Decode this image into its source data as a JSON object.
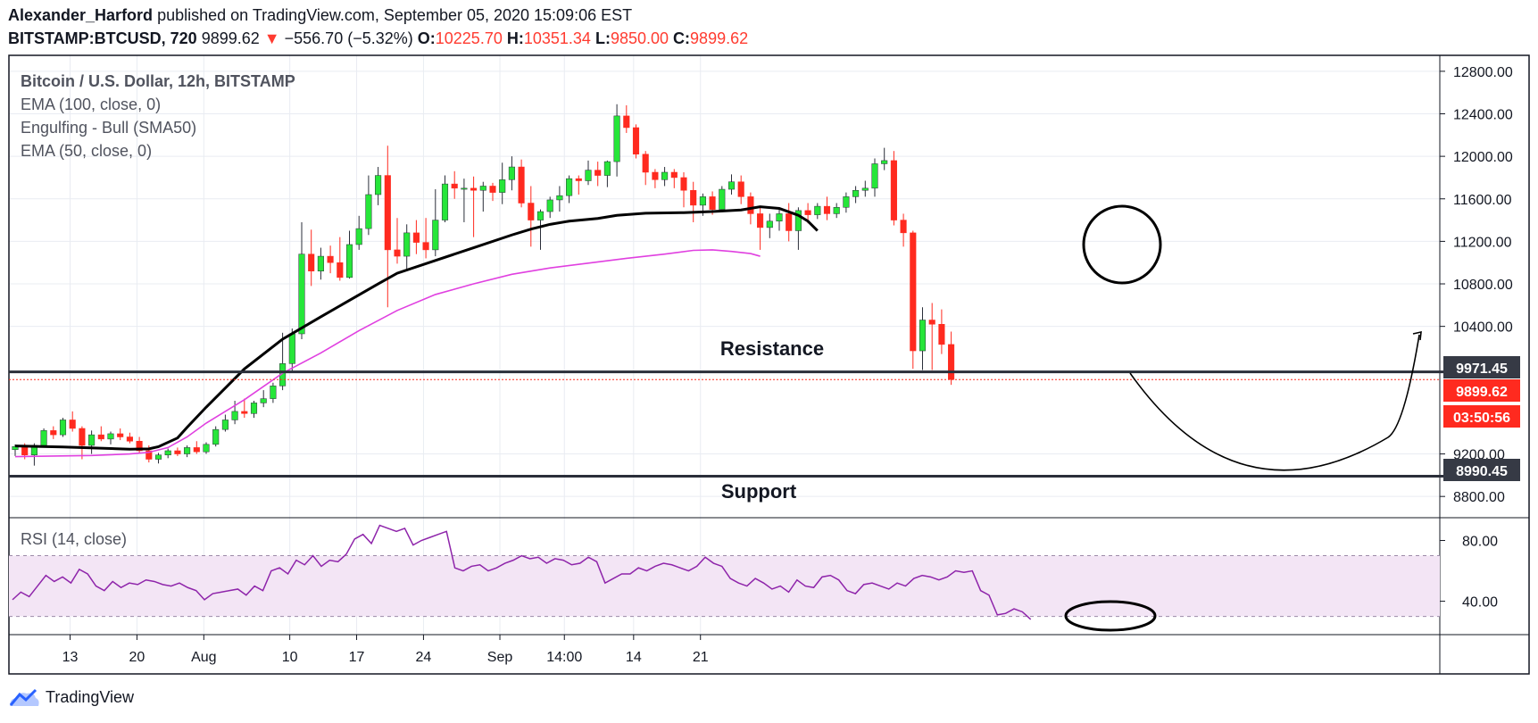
{
  "header": {
    "author": "Alexander_Harford",
    "published_text": "published on TradingView.com, September 05, 2020 15:09:06 EST",
    "symbol": "BITSTAMP:BTCUSD, 720",
    "last_price": "9899.62",
    "change_arrow": "▼",
    "change": "−556.70 (−5.32%)",
    "open_label": "O:",
    "open_value": "10225.70",
    "high_label": "H:",
    "high_value": "10351.34",
    "low_label": "L:",
    "low_value": "9850.00",
    "close_label": "C:",
    "close_value": "9899.62"
  },
  "legend": {
    "series_title": "Bitcoin / U.S. Dollar, 12h, BITSTAMP",
    "ema100": "EMA (100, close, 0)",
    "engulfing": "Engulfing - Bull (SMA50)",
    "ema50": "EMA (50, close, 0)"
  },
  "annotations": {
    "resistance": "Resistance",
    "support": "Support"
  },
  "rsi_label": "RSI (14, close)",
  "price_labels": {
    "resistance": "9971.45",
    "last": "9899.62",
    "countdown": "03:50:56",
    "support": "8990.45"
  },
  "footer": {
    "brand": "TradingView"
  },
  "colors": {
    "up": "#26e639",
    "down": "#ff2a1f",
    "ema50": "#000000",
    "ema100": "#e040e0",
    "rsi": "#8e24aa",
    "rsi_band": "#f3e5f5",
    "label_dark": "#363a45",
    "label_red": "#ff2a1f",
    "axis": "#131722"
  },
  "chart_data": {
    "type": "candlestick",
    "title": "Bitcoin / U.S. Dollar, 12h, BITSTAMP",
    "ylim": [
      8600,
      12950
    ],
    "y_ticks": [
      "12800.00",
      "12400.00",
      "12000.00",
      "11600.00",
      "11200.00",
      "10800.00",
      "10400.00",
      "9200.00",
      "8800.00"
    ],
    "y_tick_values": [
      12800,
      12400,
      12000,
      11600,
      11200,
      10800,
      10400,
      9200,
      8800
    ],
    "x_tick_labels": [
      "13",
      "20",
      "Aug",
      "10",
      "17",
      "24",
      "Sep",
      "14:00",
      "14",
      "21"
    ],
    "x_tick_index": [
      5.75,
      12.75,
      19.75,
      28.75,
      35.75,
      42.75,
      50.75,
      57.5,
      64.75,
      71.75
    ],
    "candles": [
      [
        9240,
        9290,
        9180,
        9270
      ],
      [
        9270,
        9300,
        9150,
        9190
      ],
      [
        9190,
        9300,
        9090,
        9280
      ],
      [
        9280,
        9440,
        9260,
        9420
      ],
      [
        9420,
        9460,
        9340,
        9380
      ],
      [
        9380,
        9540,
        9360,
        9520
      ],
      [
        9520,
        9600,
        9410,
        9440
      ],
      [
        9440,
        9460,
        9150,
        9280
      ],
      [
        9280,
        9420,
        9200,
        9380
      ],
      [
        9380,
        9460,
        9320,
        9340
      ],
      [
        9340,
        9410,
        9290,
        9390
      ],
      [
        9390,
        9440,
        9330,
        9360
      ],
      [
        9360,
        9400,
        9300,
        9320
      ],
      [
        9320,
        9360,
        9210,
        9230
      ],
      [
        9230,
        9280,
        9120,
        9150
      ],
      [
        9150,
        9210,
        9110,
        9190
      ],
      [
        9190,
        9250,
        9160,
        9230
      ],
      [
        9230,
        9260,
        9180,
        9200
      ],
      [
        9200,
        9280,
        9170,
        9260
      ],
      [
        9260,
        9320,
        9200,
        9220
      ],
      [
        9220,
        9310,
        9200,
        9290
      ],
      [
        9290,
        9460,
        9270,
        9430
      ],
      [
        9430,
        9570,
        9410,
        9520
      ],
      [
        9520,
        9700,
        9480,
        9600
      ],
      [
        9600,
        9720,
        9540,
        9580
      ],
      [
        9580,
        9700,
        9540,
        9680
      ],
      [
        9680,
        9800,
        9640,
        9720
      ],
      [
        9720,
        9870,
        9680,
        9840
      ],
      [
        9840,
        10340,
        9800,
        10050
      ],
      [
        10050,
        10380,
        9980,
        10330
      ],
      [
        10330,
        11380,
        10280,
        11080
      ],
      [
        11080,
        11310,
        10780,
        10920
      ],
      [
        10920,
        11140,
        10840,
        11060
      ],
      [
        11060,
        11160,
        10900,
        11000
      ],
      [
        11000,
        11240,
        10830,
        10860
      ],
      [
        10860,
        11300,
        10850,
        11170
      ],
      [
        11170,
        11440,
        11120,
        11320
      ],
      [
        11320,
        11820,
        11260,
        11640
      ],
      [
        11640,
        11900,
        11540,
        11820
      ],
      [
        11820,
        12100,
        10580,
        11120
      ],
      [
        11120,
        11420,
        10990,
        11060
      ],
      [
        11060,
        11360,
        10930,
        11280
      ],
      [
        11280,
        11400,
        11080,
        11190
      ],
      [
        11190,
        11420,
        11040,
        11120
      ],
      [
        11120,
        11690,
        11060,
        11400
      ],
      [
        11400,
        11820,
        11380,
        11740
      ],
      [
        11740,
        11860,
        11600,
        11700
      ],
      [
        11700,
        11790,
        11380,
        11700
      ],
      [
        11700,
        11810,
        11240,
        11680
      ],
      [
        11680,
        11760,
        11480,
        11720
      ],
      [
        11720,
        11750,
        11580,
        11660
      ],
      [
        11660,
        11940,
        11550,
        11780
      ],
      [
        11780,
        12000,
        11680,
        11900
      ],
      [
        11900,
        11970,
        11520,
        11560
      ],
      [
        11560,
        11720,
        11150,
        11400
      ],
      [
        11400,
        11500,
        11120,
        11480
      ],
      [
        11480,
        11620,
        11420,
        11590
      ],
      [
        11590,
        11720,
        11480,
        11630
      ],
      [
        11630,
        11820,
        11560,
        11790
      ],
      [
        11790,
        11820,
        11640,
        11770
      ],
      [
        11770,
        11960,
        11730,
        11870
      ],
      [
        11870,
        11950,
        11720,
        11820
      ],
      [
        11820,
        11960,
        11710,
        11950
      ],
      [
        11950,
        12490,
        11810,
        12380
      ],
      [
        12380,
        12480,
        12220,
        12270
      ],
      [
        12270,
        12300,
        11980,
        12020
      ],
      [
        12020,
        12050,
        11730,
        11850
      ],
      [
        11850,
        11880,
        11700,
        11780
      ],
      [
        11780,
        11900,
        11720,
        11850
      ],
      [
        11850,
        11880,
        11700,
        11800
      ],
      [
        11800,
        11850,
        11520,
        11680
      ],
      [
        11680,
        11760,
        11380,
        11540
      ],
      [
        11540,
        11650,
        11440,
        11620
      ],
      [
        11620,
        11670,
        11450,
        11500
      ],
      [
        11500,
        11720,
        11480,
        11690
      ],
      [
        11690,
        11830,
        11640,
        11760
      ],
      [
        11760,
        11820,
        11550,
        11620
      ],
      [
        11620,
        11660,
        11360,
        11460
      ],
      [
        11460,
        11520,
        11120,
        11330
      ],
      [
        11330,
        11460,
        11230,
        11390
      ],
      [
        11390,
        11520,
        11300,
        11460
      ],
      [
        11460,
        11560,
        11200,
        11300
      ],
      [
        11300,
        11520,
        11120,
        11490
      ],
      [
        11490,
        11560,
        11370,
        11450
      ],
      [
        11450,
        11560,
        11410,
        11530
      ],
      [
        11530,
        11620,
        11400,
        11460
      ],
      [
        11460,
        11560,
        11420,
        11520
      ],
      [
        11520,
        11660,
        11470,
        11620
      ],
      [
        11620,
        11720,
        11560,
        11680
      ],
      [
        11680,
        11770,
        11620,
        11700
      ],
      [
        11700,
        11980,
        11620,
        11930
      ],
      [
        11930,
        12080,
        11870,
        11960
      ],
      [
        11960,
        12050,
        11350,
        11400
      ],
      [
        11400,
        11460,
        11150,
        11280
      ],
      [
        11280,
        11300,
        10000,
        10170
      ],
      [
        10170,
        10580,
        9990,
        10460
      ],
      [
        10460,
        10620,
        9990,
        10420
      ],
      [
        10420,
        10560,
        10140,
        10230
      ],
      [
        10230,
        10351,
        9850,
        9900
      ]
    ],
    "ema50": [
      [
        0,
        9275
      ],
      [
        5,
        9265
      ],
      [
        12,
        9245
      ],
      [
        14,
        9248
      ],
      [
        15,
        9268
      ],
      [
        17,
        9350
      ],
      [
        18,
        9450
      ],
      [
        20,
        9640
      ],
      [
        24,
        10000
      ],
      [
        28,
        10280
      ],
      [
        32,
        10490
      ],
      [
        38,
        10800
      ],
      [
        40,
        10900
      ],
      [
        44,
        11020
      ],
      [
        48,
        11140
      ],
      [
        52,
        11260
      ],
      [
        54,
        11315
      ],
      [
        56,
        11360
      ],
      [
        58,
        11390
      ],
      [
        61,
        11415
      ],
      [
        63,
        11445
      ],
      [
        66,
        11465
      ],
      [
        70,
        11470
      ],
      [
        73,
        11480
      ],
      [
        76,
        11495
      ],
      [
        78,
        11525
      ],
      [
        80,
        11510
      ],
      [
        82,
        11445
      ],
      [
        83,
        11390
      ],
      [
        84,
        11300
      ]
    ],
    "ema100": [
      [
        0,
        9175
      ],
      [
        8,
        9185
      ],
      [
        12,
        9200
      ],
      [
        14,
        9215
      ],
      [
        16,
        9260
      ],
      [
        18,
        9360
      ],
      [
        20,
        9490
      ],
      [
        24,
        9710
      ],
      [
        28,
        9960
      ],
      [
        32,
        10150
      ],
      [
        36,
        10360
      ],
      [
        40,
        10550
      ],
      [
        44,
        10700
      ],
      [
        48,
        10800
      ],
      [
        52,
        10890
      ],
      [
        56,
        10950
      ],
      [
        60,
        10995
      ],
      [
        64,
        11040
      ],
      [
        68,
        11080
      ],
      [
        71,
        11115
      ],
      [
        73,
        11120
      ],
      [
        75,
        11105
      ],
      [
        77,
        11085
      ],
      [
        78,
        11060
      ]
    ],
    "resistance": 9971.45,
    "support": 8990.45,
    "last_close": 9899.62,
    "rsi": {
      "ylim": [
        18,
        95
      ],
      "band": [
        30,
        70
      ],
      "ticks": [
        "80.00",
        "40.00"
      ],
      "tick_values": [
        80,
        40
      ],
      "values": [
        41,
        46,
        43,
        50,
        57,
        53,
        56,
        52,
        61,
        58,
        50,
        47,
        53,
        49,
        52,
        51,
        54,
        53,
        51,
        50,
        52,
        49,
        47,
        41,
        45,
        46,
        47,
        48,
        44,
        50,
        47,
        60,
        62,
        58,
        67,
        64,
        70,
        63,
        67,
        66,
        71,
        81,
        84,
        78,
        90,
        88,
        86,
        88,
        77,
        80,
        82,
        84,
        86,
        62,
        60,
        63,
        64,
        60,
        62,
        65,
        67,
        70,
        68,
        69,
        65,
        68,
        67,
        64,
        65,
        69,
        66,
        52,
        55,
        58,
        58,
        62,
        60,
        63,
        65,
        64,
        62,
        60,
        63,
        69,
        65,
        63,
        55,
        52,
        50,
        55,
        52,
        48,
        50,
        46,
        54,
        50,
        49,
        56,
        57,
        54,
        47,
        45,
        51,
        52,
        50,
        48,
        52,
        50,
        55,
        57,
        56,
        54,
        56,
        60,
        59,
        60,
        47,
        44,
        31,
        32,
        35,
        33,
        28
      ]
    }
  }
}
